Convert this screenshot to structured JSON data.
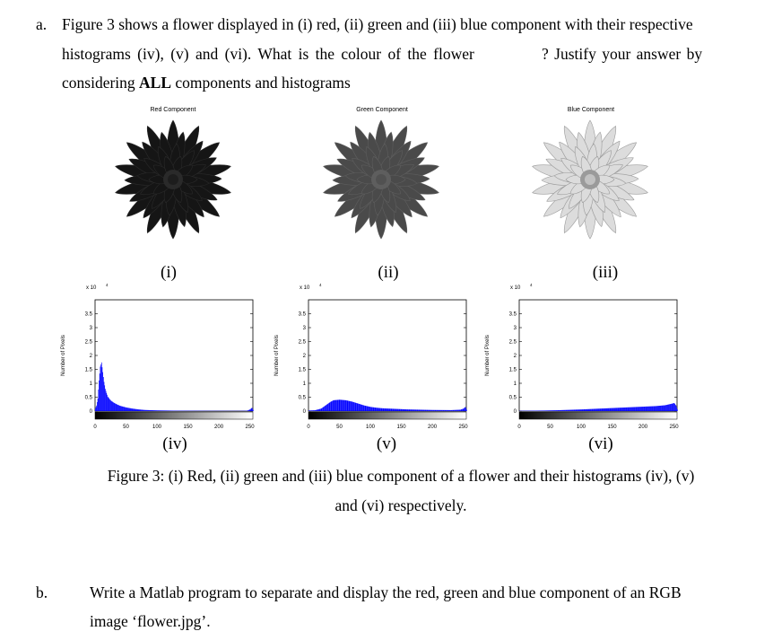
{
  "question_a": {
    "label": "a.",
    "line1": "Figure 3 shows a flower displayed in (i) red, (ii) green and (iii) blue component with their respective",
    "line2_start": "histograms (iv), (v) and (vi). What is the colour of the flower",
    "line2_end": "? Justify your answer by",
    "line3_pre": "considering ",
    "line3_bold": "ALL",
    "line3_post": " components and histograms"
  },
  "images": [
    {
      "title": "Red Component",
      "roman": "(i)",
      "flower_color": "#151515",
      "center_color": "#2a2a2a"
    },
    {
      "title": "Green Component",
      "roman": "(ii)",
      "flower_color": "#4a4a4a",
      "center_color": "#5e5e5e"
    },
    {
      "title": "Blue Component",
      "roman": "(iii)",
      "flower_color": "#dcdcdc",
      "center_color": "#9a9a9a"
    }
  ],
  "histograms": [
    {
      "roman": "(iv)",
      "ylabel": "Number of Pixels",
      "multiplier": "x 10",
      "exponent": "4"
    },
    {
      "roman": "(v)",
      "ylabel": "Number of Pixels",
      "multiplier": "x 10",
      "exponent": "4"
    },
    {
      "roman": "(vi)",
      "ylabel": "Number of Pixels",
      "multiplier": "x 10",
      "exponent": "4"
    }
  ],
  "caption": {
    "line1": "Figure 3: (i) Red, (ii) green and (iii) blue component of a flower and their histograms (iv), (v)",
    "line2": "and (vi) respectively."
  },
  "question_b": {
    "label": "b.",
    "line1": "Write a Matlab program to separate and display the red, green and blue component of an RGB",
    "line2": "image ‘flower.jpg’."
  },
  "chart_data": [
    {
      "type": "bar",
      "title": "",
      "xlabel": "",
      "ylabel": "Number of Pixels",
      "xlim": [
        0,
        255
      ],
      "ylim": [
        0,
        40000
      ],
      "y_scale_label": "x 10^4",
      "xticks": [
        0,
        50,
        100,
        150,
        200,
        250
      ],
      "yticks": [
        0,
        0.5,
        1,
        1.5,
        2,
        2.5,
        3,
        3.5
      ],
      "bar_color": "#0000ff",
      "profile": "red",
      "points": [
        [
          0,
          900
        ],
        [
          2,
          2000
        ],
        [
          4,
          4500
        ],
        [
          6,
          11000
        ],
        [
          8,
          16000
        ],
        [
          10,
          17500
        ],
        [
          12,
          14000
        ],
        [
          14,
          10500
        ],
        [
          16,
          8000
        ],
        [
          18,
          6500
        ],
        [
          20,
          5200
        ],
        [
          25,
          3800
        ],
        [
          30,
          3000
        ],
        [
          35,
          2400
        ],
        [
          40,
          1900
        ],
        [
          50,
          1300
        ],
        [
          60,
          900
        ],
        [
          70,
          600
        ],
        [
          80,
          400
        ],
        [
          100,
          250
        ],
        [
          130,
          150
        ],
        [
          180,
          100
        ],
        [
          230,
          80
        ],
        [
          245,
          120
        ],
        [
          250,
          600
        ],
        [
          253,
          1200
        ],
        [
          255,
          400
        ]
      ]
    },
    {
      "type": "bar",
      "title": "",
      "xlabel": "",
      "ylabel": "Number of Pixels",
      "xlim": [
        0,
        255
      ],
      "ylim": [
        0,
        40000
      ],
      "y_scale_label": "x 10^4",
      "xticks": [
        0,
        50,
        100,
        150,
        200,
        250
      ],
      "yticks": [
        0,
        0.5,
        1,
        1.5,
        2,
        2.5,
        3,
        3.5
      ],
      "bar_color": "#0000ff",
      "profile": "green",
      "points": [
        [
          0,
          200
        ],
        [
          10,
          300
        ],
        [
          20,
          900
        ],
        [
          30,
          2500
        ],
        [
          35,
          3300
        ],
        [
          40,
          3900
        ],
        [
          50,
          4100
        ],
        [
          60,
          3900
        ],
        [
          70,
          3400
        ],
        [
          80,
          2700
        ],
        [
          90,
          2000
        ],
        [
          100,
          1500
        ],
        [
          110,
          1200
        ],
        [
          120,
          1000
        ],
        [
          140,
          800
        ],
        [
          160,
          600
        ],
        [
          180,
          500
        ],
        [
          200,
          400
        ],
        [
          230,
          350
        ],
        [
          245,
          500
        ],
        [
          250,
          900
        ],
        [
          253,
          1500
        ],
        [
          255,
          500
        ]
      ]
    },
    {
      "type": "bar",
      "title": "",
      "xlabel": "",
      "ylabel": "Number of Pixels",
      "xlim": [
        0,
        255
      ],
      "ylim": [
        0,
        40000
      ],
      "y_scale_label": "x 10^4",
      "xticks": [
        0,
        50,
        100,
        150,
        200,
        250
      ],
      "yticks": [
        0,
        0.5,
        1,
        1.5,
        2,
        2.5,
        3,
        3.5
      ],
      "bar_color": "#0000ff",
      "profile": "blue",
      "points": [
        [
          0,
          100
        ],
        [
          20,
          150
        ],
        [
          40,
          200
        ],
        [
          60,
          300
        ],
        [
          80,
          450
        ],
        [
          100,
          600
        ],
        [
          120,
          800
        ],
        [
          140,
          1000
        ],
        [
          160,
          1200
        ],
        [
          180,
          1400
        ],
        [
          200,
          1600
        ],
        [
          220,
          1800
        ],
        [
          235,
          2100
        ],
        [
          245,
          2600
        ],
        [
          250,
          2900
        ],
        [
          253,
          2000
        ],
        [
          255,
          700
        ]
      ]
    }
  ]
}
